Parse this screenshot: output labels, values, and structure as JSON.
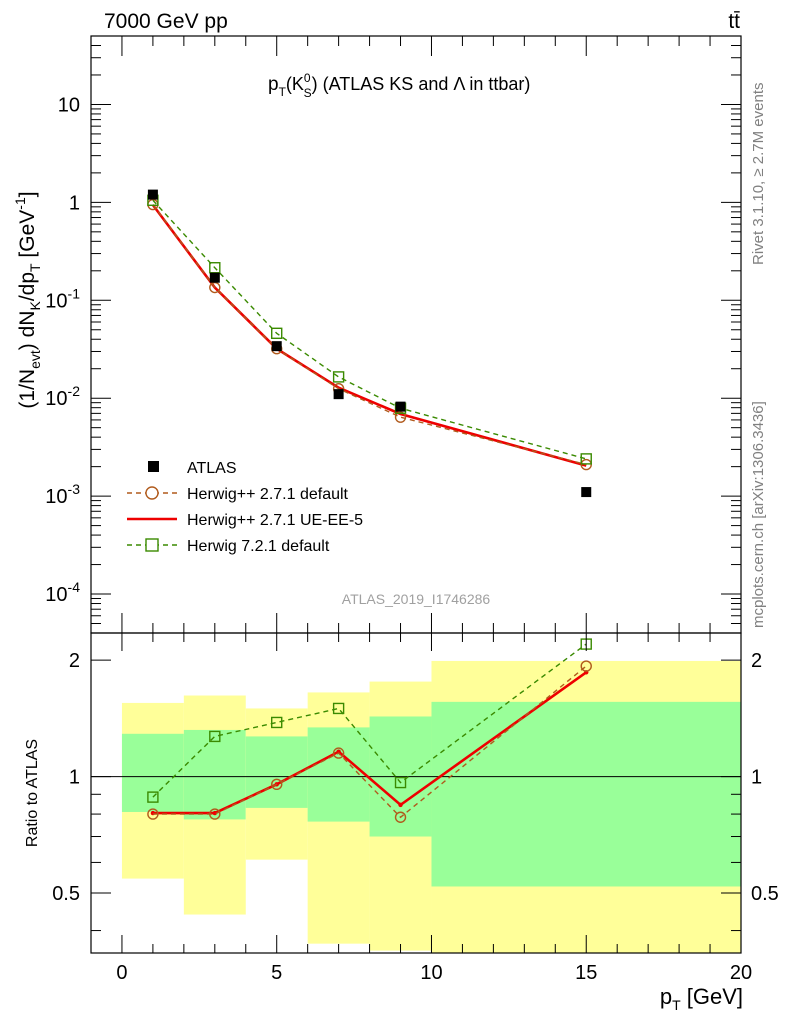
{
  "header": {
    "energy_label": "7000 GeV pp",
    "process_label": "tt̄",
    "side_label_rivet": "Rivet 3.1.10, ≥ 2.7M events",
    "side_label_mcplots": "mcplots.cern.ch [arXiv:1306.3436]",
    "analysis_label": "ATLAS_2019_I1746286"
  },
  "colors": {
    "data": "#000000",
    "herwigpp_default": "#b05a1c",
    "herwigpp_ueee5": "#ee0000",
    "herwig721_default": "#3a8a00",
    "band_inner": "#99ff99",
    "band_outer": "#ffff99"
  },
  "chart_data": [
    {
      "type": "scatter",
      "panel": "main",
      "title": "p_T(K^0_S) (ATLAS KS and Λ in ttbar)",
      "title_parts": {
        "p": "p",
        "T": "T",
        "K": "(K",
        "zero": "0",
        "S": "S",
        "rest": ") (ATLAS KS and Λ in ttbar)"
      },
      "ylabel": "(1/N_evt) dN_K/dp_T [GeV^-1]",
      "ylabel_parts": {
        "a": "(1/N",
        "evt": "evt",
        "b": ") dN",
        "K": "K",
        "c": "/dp",
        "T": "T",
        "d": " [GeV",
        "exp": "-1",
        "e": "]"
      },
      "yscale": "log",
      "ylim": [
        4e-05,
        50
      ],
      "xlim": [
        -1,
        20
      ],
      "yticks": [
        {
          "v": 0.0001,
          "base": "10",
          "exp": "-4"
        },
        {
          "v": 0.001,
          "base": "10",
          "exp": "-3"
        },
        {
          "v": 0.01,
          "base": "10",
          "exp": "-2"
        },
        {
          "v": 0.1,
          "base": "10",
          "exp": "-1"
        },
        {
          "v": 1,
          "base": "1",
          "exp": ""
        },
        {
          "v": 10,
          "base": "10",
          "exp": ""
        }
      ],
      "legend_position": "lower-left",
      "series": [
        {
          "name": "ATLAS",
          "key": "data",
          "style": "filled-square",
          "x": [
            1,
            3,
            5,
            7,
            9,
            15
          ],
          "y": [
            1.2,
            0.17,
            0.034,
            0.011,
            0.0082,
            0.0011
          ]
        },
        {
          "name": "Herwig++ 2.7.1 default",
          "key": "herwigpp_default",
          "style": "dashed-circle",
          "x": [
            1,
            3,
            5,
            7,
            9,
            15
          ],
          "y": [
            0.95,
            0.135,
            0.032,
            0.0125,
            0.0064,
            0.0021
          ]
        },
        {
          "name": "Herwig++ 2.7.1 UE-EE-5",
          "key": "herwigpp_ueee5",
          "style": "solid-line",
          "x": [
            1,
            3,
            5,
            7,
            9,
            15
          ],
          "y": [
            0.94,
            0.135,
            0.032,
            0.0128,
            0.0069,
            0.00205
          ]
        },
        {
          "name": "Herwig 7.2.1 default",
          "key": "herwig721_default",
          "style": "dashed-square",
          "x": [
            1,
            3,
            5,
            7,
            9,
            15
          ],
          "y": [
            1.05,
            0.215,
            0.046,
            0.0165,
            0.0079,
            0.0024
          ]
        }
      ]
    },
    {
      "type": "line",
      "panel": "ratio",
      "ylabel": "Ratio to ATLAS",
      "xlabel": "p_T [GeV]",
      "xlabel_parts": {
        "p": "p",
        "T": "T",
        "unit": " [GeV]"
      },
      "yscale": "log",
      "ylim": [
        0.35,
        2.35
      ],
      "xlim": [
        -1,
        20
      ],
      "xticks": [
        0,
        5,
        10,
        15,
        20
      ],
      "yticks": [
        {
          "v": 0.5,
          "label": "0.5"
        },
        {
          "v": 1,
          "label": "1"
        },
        {
          "v": 2,
          "label": "2"
        }
      ],
      "bands": [
        {
          "x0": 0,
          "x1": 2,
          "inner": [
            0.81,
            1.29
          ],
          "outer": [
            0.545,
            1.55
          ]
        },
        {
          "x0": 2,
          "x1": 4,
          "inner": [
            0.775,
            1.32
          ],
          "outer": [
            0.44,
            1.62
          ]
        },
        {
          "x0": 4,
          "x1": 6,
          "inner": [
            0.83,
            1.27
          ],
          "outer": [
            0.61,
            1.5
          ]
        },
        {
          "x0": 6,
          "x1": 8,
          "inner": [
            0.765,
            1.34
          ],
          "outer": [
            0.37,
            1.65
          ]
        },
        {
          "x0": 8,
          "x1": 10,
          "inner": [
            0.7,
            1.43
          ],
          "outer": [
            0.355,
            1.76
          ]
        },
        {
          "x0": 10,
          "x1": 20,
          "inner": [
            0.52,
            1.56
          ],
          "outer": [
            0.33,
            1.99
          ]
        }
      ],
      "series": [
        {
          "name": "Herwig++ 2.7.1 default",
          "key": "herwigpp_default",
          "style": "dashed-circle",
          "x": [
            1,
            3,
            5,
            7,
            9,
            15
          ],
          "y": [
            0.8,
            0.8,
            0.955,
            1.15,
            0.785,
            1.93
          ]
        },
        {
          "name": "Herwig++ 2.7.1 UE-EE-5",
          "key": "herwigpp_ueee5",
          "style": "solid-line",
          "x": [
            1,
            3,
            5,
            7,
            9,
            15
          ],
          "y": [
            0.805,
            0.805,
            0.955,
            1.16,
            0.845,
            1.86
          ]
        },
        {
          "name": "Herwig 7.2.1 default",
          "key": "herwig721_default",
          "style": "dashed-square",
          "x": [
            1,
            3,
            5,
            7,
            9,
            15
          ],
          "y": [
            0.885,
            1.27,
            1.38,
            1.5,
            0.965,
            2.2
          ]
        }
      ]
    }
  ]
}
